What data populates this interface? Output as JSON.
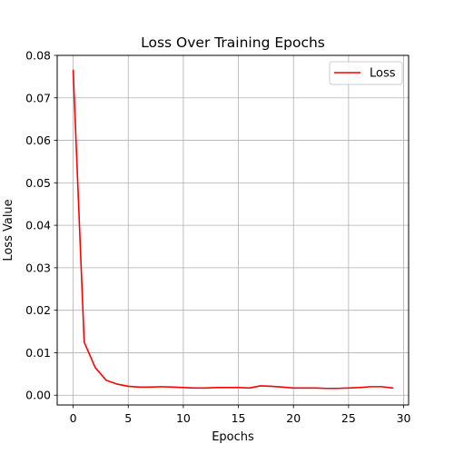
{
  "chart_data": {
    "type": "line",
    "title": "Loss Over Training Epochs",
    "xlabel": "Epochs",
    "ylabel": "Loss Value",
    "xlim": [
      -1.45,
      30.45
    ],
    "ylim": [
      -0.0023,
      0.08
    ],
    "xticks": [
      0,
      5,
      10,
      15,
      20,
      25,
      30
    ],
    "yticks": [
      0.0,
      0.01,
      0.02,
      0.03,
      0.04,
      0.05,
      0.06,
      0.07,
      0.08
    ],
    "ytick_labels": [
      "0.00",
      "0.01",
      "0.02",
      "0.03",
      "0.04",
      "0.05",
      "0.06",
      "0.07",
      "0.08"
    ],
    "grid": true,
    "legend_position": "top-right",
    "series": [
      {
        "name": "Loss",
        "color": "#ff0000",
        "x": [
          0,
          1,
          2,
          3,
          4,
          5,
          6,
          7,
          8,
          9,
          10,
          11,
          12,
          13,
          14,
          15,
          16,
          17,
          18,
          19,
          20,
          21,
          22,
          23,
          24,
          25,
          26,
          27,
          28,
          29
        ],
        "y": [
          0.0765,
          0.0125,
          0.0065,
          0.0035,
          0.0026,
          0.0021,
          0.0019,
          0.0019,
          0.002,
          0.0019,
          0.0018,
          0.0017,
          0.0017,
          0.0018,
          0.0018,
          0.0018,
          0.0017,
          0.0022,
          0.0021,
          0.0019,
          0.0017,
          0.0017,
          0.0017,
          0.0016,
          0.0016,
          0.0017,
          0.0018,
          0.002,
          0.002,
          0.0017
        ]
      }
    ]
  }
}
